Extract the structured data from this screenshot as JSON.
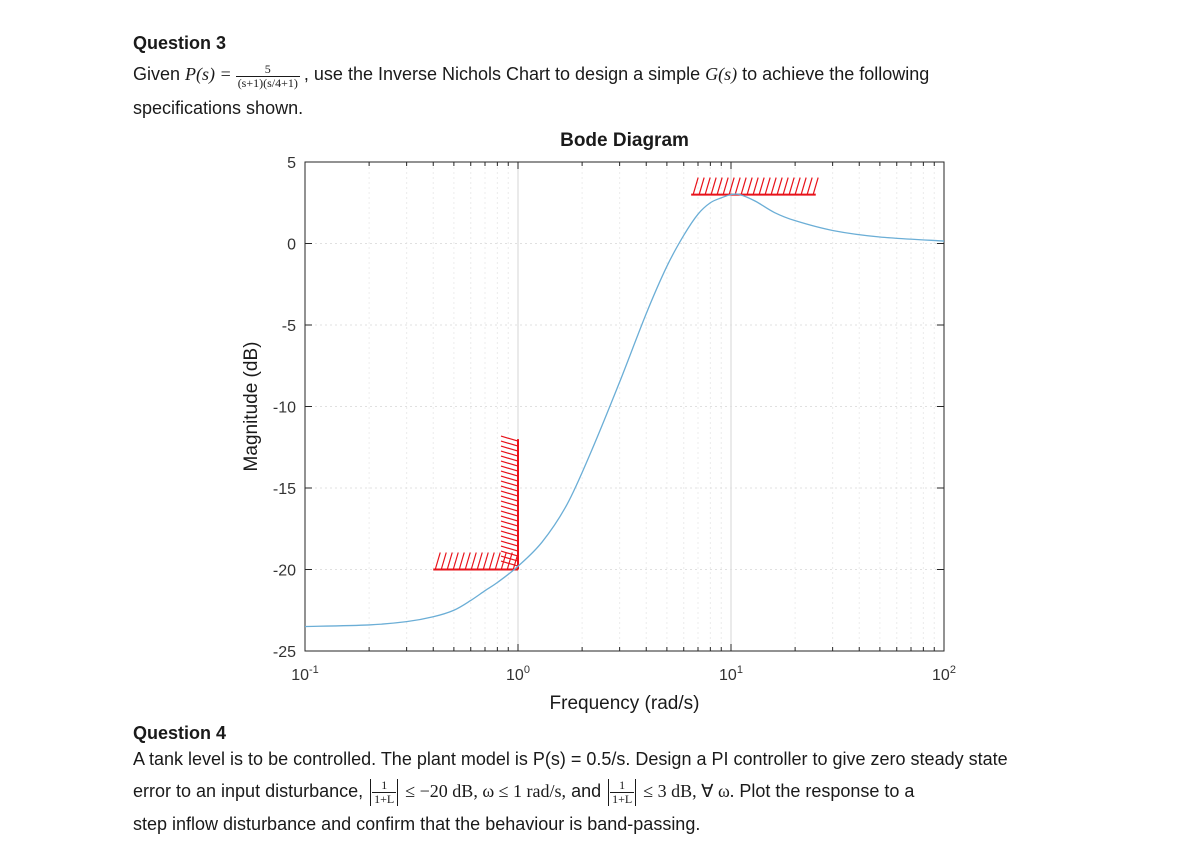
{
  "q3": {
    "heading": "Question 3",
    "given": "Given",
    "plant_lhs": "P(s) =",
    "plant_num": "5",
    "plant_den": "(s+1)(s/4+1)",
    "plant_sep": ",",
    "instruction_1": "use the Inverse Nichols Chart to design a simple",
    "g": "G(s)",
    "instruction_2": "to achieve the following",
    "instruction_3": "specifications shown."
  },
  "q4": {
    "heading": "Question 4",
    "line1": "A tank level is to be controlled. The plant model is P(s) = 0.5/s. Design a PI controller to give zero steady state",
    "line2_a": "error to an input disturbance,",
    "frac_num": "1",
    "frac_den": "1+L",
    "spec1": "≤ −20 dB, ω ≤ 1 rad/s,",
    "and": "and",
    "spec2": "≤ 3 dB,  ∀ ω.",
    "line2_b": "Plot the response to a",
    "line3": "step inflow disturbance and confirm that the behaviour is band-passing."
  },
  "chart_data": {
    "type": "line",
    "title": "Bode Diagram",
    "xlabel": "Frequency  (rad/s)",
    "ylabel": "Magnitude (dB)",
    "xscale": "log",
    "xlim": [
      0.1,
      100
    ],
    "ylim": [
      -25,
      5
    ],
    "xticks": [
      {
        "base": "10",
        "exp": "-1",
        "value": 0.1
      },
      {
        "base": "10",
        "exp": "0",
        "value": 1
      },
      {
        "base": "10",
        "exp": "1",
        "value": 10
      },
      {
        "base": "10",
        "exp": "2",
        "value": 100
      }
    ],
    "yticks": [
      {
        "label": "5",
        "value": 5
      },
      {
        "label": "0",
        "value": 0
      },
      {
        "label": "-5",
        "value": -5
      },
      {
        "label": "-10",
        "value": -10
      },
      {
        "label": "-15",
        "value": -15
      },
      {
        "label": "-20",
        "value": -20
      },
      {
        "label": "-25",
        "value": -25
      }
    ],
    "grid": true,
    "series": [
      {
        "color": "#6baed6",
        "x": [
          0.1,
          0.2,
          0.3,
          0.4,
          0.5,
          0.6,
          0.7,
          0.8,
          1.0,
          1.3,
          1.7,
          2.2,
          3.0,
          4.0,
          5.0,
          6.0,
          7.0,
          8.0,
          9.0,
          10.0,
          11.0,
          13.0,
          16.0,
          20.0,
          30.0,
          50.0,
          100.0
        ],
        "y": [
          -23.5,
          -23.4,
          -23.2,
          -22.9,
          -22.5,
          -21.9,
          -21.3,
          -20.8,
          -19.8,
          -18.3,
          -16.0,
          -12.8,
          -8.5,
          -4.3,
          -1.4,
          0.5,
          1.8,
          2.5,
          2.8,
          3.0,
          3.0,
          2.6,
          1.9,
          1.4,
          0.8,
          0.4,
          0.15
        ]
      }
    ],
    "constraints": [
      {
        "color": "#e8121a",
        "x": [
          0.4,
          1.0
        ],
        "y": -20.0,
        "vertical_x": 1.0,
        "vertical_y": [
          -20.0,
          -12.0
        ]
      },
      {
        "color": "#e8121a",
        "x": [
          6.5,
          25.0
        ],
        "y": 3.0
      }
    ]
  }
}
